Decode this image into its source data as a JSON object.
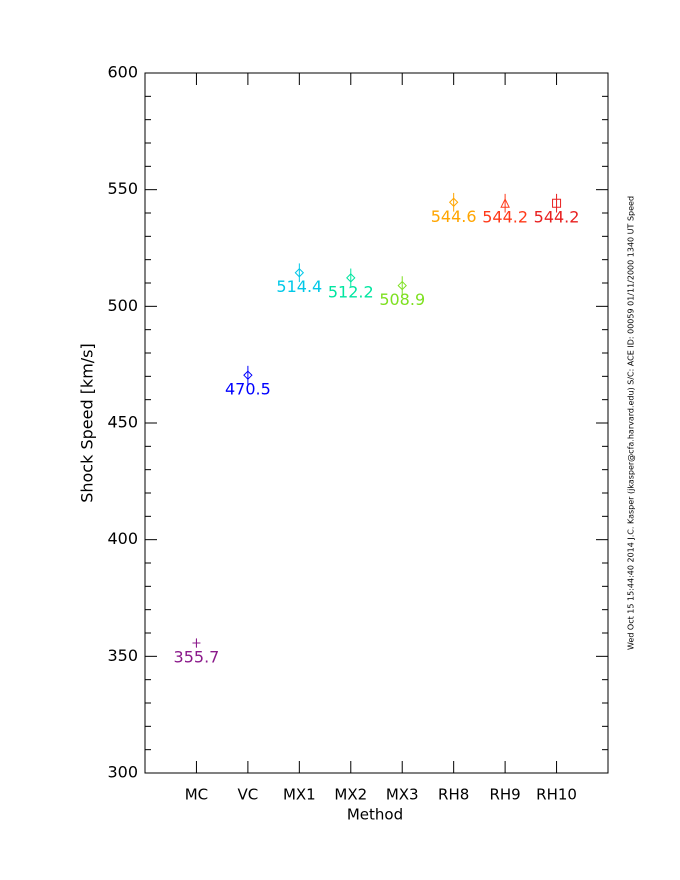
{
  "chart_data": {
    "type": "scatter",
    "x_label": "Method",
    "y_label": "Shock Speed [km/s]",
    "side_note": "Wed Oct 15 15:44:40 2014  J.C. Kasper (jkasper@cfa.harvard.edu)  S/C: ACE ID: 00059 01/11/2000  1340 UT Speed",
    "categories": [
      "MC",
      "VC",
      "MX1",
      "MX2",
      "MX3",
      "RH8",
      "RH9",
      "RH10"
    ],
    "values": [
      355.7,
      470.5,
      514.4,
      512.2,
      508.9,
      544.6,
      544.2,
      544.2
    ],
    "errors": [
      2,
      4,
      4,
      4,
      4,
      4,
      4,
      4
    ],
    "colors": [
      "#8b1a8b",
      "#0000ff",
      "#00c8e8",
      "#00e6a0",
      "#7ee020",
      "#ffa500",
      "#ff3a1a",
      "#e82020"
    ],
    "markers": [
      "plus",
      "diamond",
      "diamond",
      "diamond",
      "diamond",
      "diamond",
      "triangle",
      "square"
    ],
    "ylim": [
      300,
      600
    ],
    "yticks": [
      300,
      350,
      400,
      450,
      500,
      550,
      600
    ]
  }
}
